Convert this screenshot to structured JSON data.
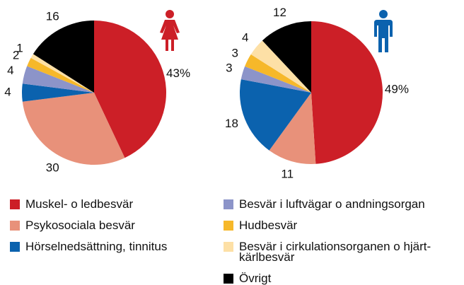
{
  "chart_data": [
    {
      "type": "pie",
      "categories": [
        "Muskel- o ledbesvär",
        "Psykosociala besvär",
        "Hörselnedsättning, tinnitus",
        "Besvär i luftvägar o andningsorgan",
        "Hudbesvär",
        "Besvär i cirkulationsorganen o hjärt-kärlbesvär",
        "Övrigt"
      ],
      "values": [
        43,
        30,
        4,
        4,
        2,
        1,
        16
      ],
      "value_labels": [
        "43%",
        "30",
        "4",
        "4",
        "2",
        "1",
        "16"
      ],
      "colors": [
        "#cc1f27",
        "#e8917a",
        "#0b62ae",
        "#8c94c9",
        "#f6b82a",
        "#fde0a6",
        "#000000"
      ]
    },
    {
      "type": "pie",
      "categories": [
        "Muskel- o ledbesvär",
        "Psykosociala besvär",
        "Hörselnedsättning, tinnitus",
        "Besvär i luftvägar o andningsorgan",
        "Hudbesvär",
        "Besvär i cirkulationsorganen o hjärt-kärlbesvär",
        "Övrigt"
      ],
      "values": [
        49,
        11,
        18,
        3,
        3,
        4,
        12
      ],
      "value_labels": [
        "49%",
        "11",
        "18",
        "3",
        "3",
        "4",
        "12"
      ],
      "colors": [
        "#cc1f27",
        "#e8917a",
        "#0b62ae",
        "#8c94c9",
        "#f6b82a",
        "#fde0a6",
        "#000000"
      ]
    }
  ]
}
